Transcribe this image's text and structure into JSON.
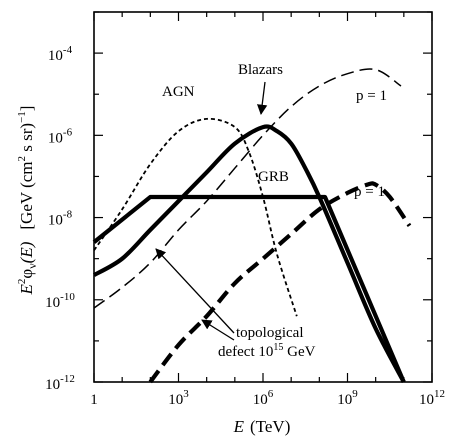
{
  "chart_data": {
    "type": "line",
    "title": "",
    "xlabel": "E (TeV)",
    "ylabel": "E²φν(E) [GeV (cm² s sr)⁻¹]",
    "xscale": "log",
    "yscale": "log",
    "xlim_log10": [
      0,
      12
    ],
    "ylim_log10": [
      -12,
      -3
    ],
    "grid": false,
    "x_ticks": [
      {
        "base": "1",
        "exp": ""
      },
      {
        "base": "10",
        "exp": "3"
      },
      {
        "base": "10",
        "exp": "6"
      },
      {
        "base": "10",
        "exp": "9"
      },
      {
        "base": "10",
        "exp": "12"
      }
    ],
    "y_ticks": [
      {
        "base": "10",
        "exp": "-12"
      },
      {
        "base": "10",
        "exp": "-10"
      },
      {
        "base": "10",
        "exp": "-8"
      },
      {
        "base": "10",
        "exp": "-6"
      },
      {
        "base": "10",
        "exp": "-4"
      }
    ],
    "series": [
      {
        "name": "AGN",
        "style": "short-dash-thin",
        "log10_x": [
          0,
          1,
          2,
          3,
          4,
          5,
          5.5,
          6,
          6.5,
          7.2
        ],
        "log10_y": [
          -8.8,
          -7.8,
          -6.7,
          -5.9,
          -5.6,
          -5.8,
          -6.4,
          -7.5,
          -8.9,
          -10.4
        ]
      },
      {
        "name": "Blazars",
        "style": "solid-thick",
        "log10_x": [
          0,
          1,
          2,
          3,
          4,
          5,
          6,
          6.5,
          7,
          7.5,
          8,
          9,
          10,
          11
        ],
        "log10_y": [
          -9.4,
          -9.0,
          -8.3,
          -7.6,
          -6.9,
          -6.2,
          -5.8,
          -5.9,
          -6.2,
          -6.8,
          -7.5,
          -9.1,
          -10.7,
          -12.0
        ]
      },
      {
        "name": "GRB",
        "style": "solid-thick",
        "log10_x": [
          0,
          2,
          8.2,
          11
        ],
        "log10_y": [
          -8.6,
          -7.5,
          -7.5,
          -12.0
        ]
      },
      {
        "name": "p=1",
        "style": "long-dash-thin",
        "log10_x": [
          0,
          1,
          2,
          3,
          4,
          5,
          6,
          7,
          8,
          9,
          10,
          10.9
        ],
        "log10_y": [
          -10.2,
          -9.7,
          -9.1,
          -8.3,
          -7.6,
          -6.8,
          -6.0,
          -5.3,
          -4.8,
          -4.5,
          -4.4,
          -4.8
        ]
      },
      {
        "name": "p=1",
        "style": "long-dash-thick",
        "log10_x": [
          2,
          3,
          4,
          5,
          6,
          7,
          8,
          9,
          9.7,
          10,
          10.5,
          11.2
        ],
        "log10_y": [
          -12.0,
          -11.1,
          -10.4,
          -9.6,
          -9.0,
          -8.4,
          -7.8,
          -7.4,
          -7.2,
          -7.2,
          -7.5,
          -8.2
        ]
      }
    ],
    "annotations": [
      {
        "id": "agn",
        "text": "AGN"
      },
      {
        "id": "blazars",
        "text": "Blazars"
      },
      {
        "id": "grb",
        "text": "GRB"
      },
      {
        "id": "p1_upper",
        "text": "p = 1"
      },
      {
        "id": "p1_lower",
        "text": "p = 1"
      },
      {
        "id": "topo_1",
        "text": "topological"
      },
      {
        "id": "topo_2_pre",
        "text": "defect 10"
      },
      {
        "id": "topo_2_exp",
        "text": "15"
      },
      {
        "id": "topo_2_post",
        "text": " GeV"
      }
    ],
    "ylabel_parts": {
      "E": "E",
      "two": "2",
      "phi": "φ",
      "nu": "ν",
      "arg": "(E)",
      "unit_open": "[GeV (cm",
      "unit_sq": "2",
      "unit_mid": " s sr)",
      "unit_exp": "−1",
      "unit_close": "]"
    },
    "xlabel_parts": {
      "E": "E",
      "unit": "(TeV)"
    }
  }
}
